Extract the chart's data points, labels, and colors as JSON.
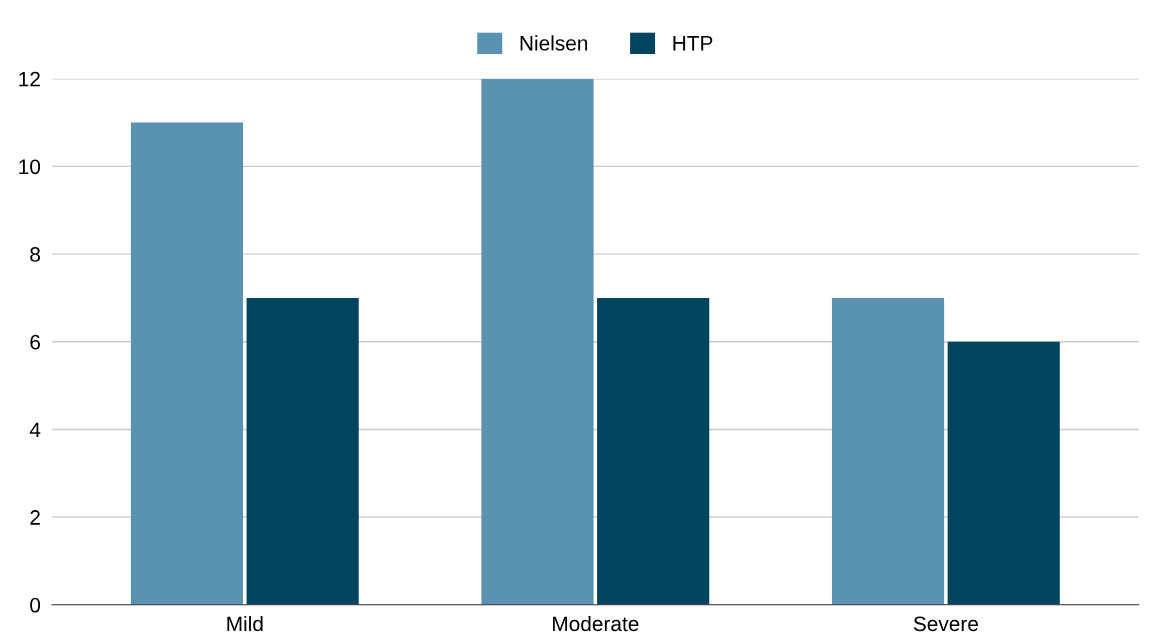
{
  "chart_data": {
    "type": "bar",
    "categories": [
      "Mild",
      "Moderate",
      "Severe"
    ],
    "series": [
      {
        "name": "Nielsen",
        "color": "#5a92b2",
        "values": [
          11,
          12,
          7
        ]
      },
      {
        "name": "HTP",
        "color": "#01445f",
        "values": [
          7,
          7,
          6
        ]
      }
    ],
    "ylim": [
      0,
      12
    ],
    "yticks": [
      0,
      2,
      4,
      6,
      8,
      10,
      12
    ],
    "grid": "y",
    "legend": "top"
  }
}
